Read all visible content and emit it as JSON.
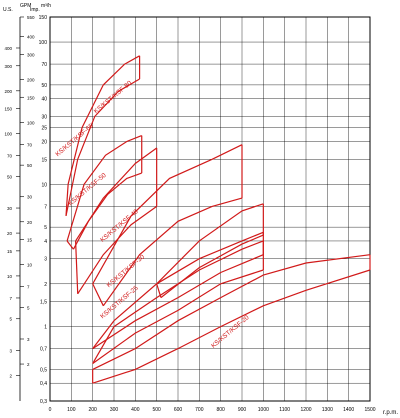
{
  "chart_data": {
    "type": "line",
    "title": "",
    "xlabel": "r.p.m.",
    "xlim": [
      0,
      1500
    ],
    "x_ticks": [
      0,
      100,
      200,
      300,
      400,
      500,
      600,
      700,
      800,
      900,
      1000,
      1100,
      1200,
      1300,
      1400,
      1500
    ],
    "y_axis_header": "m³/h",
    "y_scale": "log",
    "ylim": [
      0.3,
      150
    ],
    "y_ticks": [
      {
        "v": 150,
        "l": "150"
      },
      {
        "v": 100,
        "l": "100"
      },
      {
        "v": 70,
        "l": "70"
      },
      {
        "v": 50,
        "l": "50"
      },
      {
        "v": 40,
        "l": "40"
      },
      {
        "v": 30,
        "l": "30"
      },
      {
        "v": 25,
        "l": "25"
      },
      {
        "v": 20,
        "l": "20"
      },
      {
        "v": 15,
        "l": "15"
      },
      {
        "v": 10,
        "l": "10"
      },
      {
        "v": 7,
        "l": "7"
      },
      {
        "v": 5,
        "l": "5"
      },
      {
        "v": 4,
        "l": "4"
      },
      {
        "v": 3,
        "l": "3"
      },
      {
        "v": 2,
        "l": "2"
      },
      {
        "v": 1.5,
        "l": "1,5"
      },
      {
        "v": 1,
        "l": "1"
      },
      {
        "v": 0.7,
        "l": "0,7"
      },
      {
        "v": 0.5,
        "l": "0,5"
      },
      {
        "v": 0.4,
        "l": "0,4"
      },
      {
        "v": 0.3,
        "l": "0,3"
      }
    ],
    "gpm_header": "GPM",
    "gpm_us_header": "U.S.",
    "gpm_imp_header": "Imp.",
    "gpm_us_ticks": [
      {
        "v": 700,
        "l": "700"
      },
      {
        "v": 400,
        "l": "400"
      },
      {
        "v": 300,
        "l": "300"
      },
      {
        "v": 200,
        "l": "200"
      },
      {
        "v": 150,
        "l": "150"
      },
      {
        "v": 100,
        "l": "100"
      },
      {
        "v": 70,
        "l": "70"
      },
      {
        "v": 50,
        "l": "50"
      },
      {
        "v": 30,
        "l": "30"
      },
      {
        "v": 20,
        "l": "20"
      },
      {
        "v": 15,
        "l": "15"
      },
      {
        "v": 10,
        "l": "10"
      },
      {
        "v": 7,
        "l": "7"
      },
      {
        "v": 5,
        "l": "5"
      },
      {
        "v": 3,
        "l": "3"
      },
      {
        "v": 2,
        "l": "2"
      }
    ],
    "gpm_imp_ticks": [
      {
        "v": 550,
        "l": "550"
      },
      {
        "v": 400,
        "l": "400"
      },
      {
        "v": 300,
        "l": "300"
      },
      {
        "v": 200,
        "l": "200"
      },
      {
        "v": 150,
        "l": "150"
      },
      {
        "v": 100,
        "l": "100"
      },
      {
        "v": 70,
        "l": "70"
      },
      {
        "v": 50,
        "l": "50"
      },
      {
        "v": 30,
        "l": "30"
      },
      {
        "v": 20,
        "l": "20"
      },
      {
        "v": 15,
        "l": "15"
      },
      {
        "v": 10,
        "l": "10"
      },
      {
        "v": 7,
        "l": "7"
      },
      {
        "v": 5,
        "l": "5"
      },
      {
        "v": 3,
        "l": "3"
      },
      {
        "v": 2,
        "l": "2"
      }
    ],
    "grid": true,
    "colors": {
      "curves": "#d11a1a",
      "grid": "#000000",
      "axis_text": "#000000"
    },
    "series": [
      {
        "name": "KS/KST/KSF-80",
        "label_at": [
          300,
          40
        ],
        "upper": [
          [
            85,
            10
          ],
          [
            150,
            25
          ],
          [
            250,
            50
          ],
          [
            350,
            70
          ],
          [
            420,
            80
          ]
        ],
        "lower": [
          [
            75,
            6
          ],
          [
            130,
            15
          ],
          [
            210,
            30
          ],
          [
            320,
            45
          ],
          [
            420,
            55
          ]
        ]
      },
      {
        "name": "KS/KST/KSF-65",
        "label_at": [
          120,
          20
        ],
        "upper": [
          [
            80,
            4
          ],
          [
            160,
            10
          ],
          [
            260,
            16
          ],
          [
            360,
            20
          ],
          [
            430,
            22
          ]
        ],
        "lower": [
          [
            110,
            3.5
          ],
          [
            180,
            5.5
          ],
          [
            270,
            8.5
          ],
          [
            360,
            11
          ],
          [
            430,
            12
          ]
        ]
      },
      {
        "name": "KS/KST/KSF-50",
        "label_at": [
          180,
          9
        ],
        "upper": [
          [
            120,
            4
          ],
          [
            250,
            8
          ],
          [
            400,
            14
          ],
          [
            500,
            18
          ]
        ],
        "lower": [
          [
            130,
            1.7
          ],
          [
            250,
            3.2
          ],
          [
            380,
            5.2
          ],
          [
            500,
            7
          ]
        ]
      },
      {
        "name": "KS/KST/KSF-40",
        "label_at": [
          330,
          5
        ],
        "upper": [
          [
            200,
            2
          ],
          [
            380,
            6
          ],
          [
            560,
            11
          ],
          [
            760,
            15
          ],
          [
            900,
            19
          ]
        ],
        "lower": [
          [
            250,
            1.4
          ],
          [
            420,
            3.2
          ],
          [
            600,
            5.5
          ],
          [
            760,
            7
          ],
          [
            900,
            8
          ]
        ]
      },
      {
        "name": "",
        "label_at": [
          0,
          0
        ],
        "upper": [
          [
            500,
            2
          ],
          [
            700,
            4
          ],
          [
            900,
            6.5
          ],
          [
            1000,
            7.3
          ]
        ],
        "lower": [
          [
            520,
            1.6
          ],
          [
            700,
            2.6
          ],
          [
            900,
            3.8
          ],
          [
            1000,
            4.4
          ]
        ]
      },
      {
        "name": "KS/KST/KSF-30",
        "label_at": [
          360,
          2.4
        ],
        "upper": [
          [
            300,
            1.1
          ],
          [
            500,
            2
          ],
          [
            700,
            3
          ],
          [
            900,
            4
          ],
          [
            1000,
            4.6
          ]
        ],
        "lower": [
          [
            200,
            0.7
          ],
          [
            400,
            1.1
          ],
          [
            600,
            1.6
          ],
          [
            800,
            2.4
          ],
          [
            1000,
            3.2
          ]
        ]
      },
      {
        "name": "KS/KST/KSF-25",
        "label_at": [
          330,
          1.45
        ],
        "upper": [
          [
            300,
            1
          ],
          [
            500,
            1.6
          ],
          [
            700,
            2.5
          ],
          [
            900,
            3.5
          ],
          [
            1000,
            4
          ]
        ],
        "lower": [
          [
            200,
            0.55
          ],
          [
            400,
            0.9
          ],
          [
            600,
            1.3
          ],
          [
            800,
            2
          ],
          [
            1000,
            2.5
          ]
        ]
      },
      {
        "name": "KS/KST/KSF-20",
        "label_at": [
          850,
          0.9
        ],
        "upper": [
          [
            200,
            0.5
          ],
          [
            400,
            0.7
          ],
          [
            600,
            1.1
          ],
          [
            800,
            1.6
          ],
          [
            1000,
            2.3
          ],
          [
            1200,
            2.8
          ],
          [
            1500,
            3.2
          ]
        ],
        "lower": [
          [
            200,
            0.4
          ],
          [
            400,
            0.5
          ],
          [
            600,
            0.7
          ],
          [
            800,
            1
          ],
          [
            1000,
            1.4
          ],
          [
            1200,
            1.8
          ],
          [
            1500,
            2.5
          ]
        ]
      }
    ]
  }
}
